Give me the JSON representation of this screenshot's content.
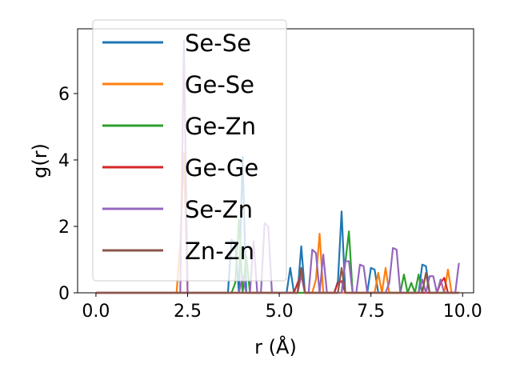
{
  "chart_data": {
    "type": "line",
    "xlabel": "r (Å)",
    "ylabel": "g(r)",
    "xlim": [
      -0.5,
      10.3
    ],
    "ylim": [
      0,
      7.95
    ],
    "xticks": [
      0.0,
      2.5,
      5.0,
      7.5,
      10.0
    ],
    "xtick_labels": [
      "0.0",
      "2.5",
      "5.0",
      "7.5",
      "10.0"
    ],
    "yticks": [
      0,
      2,
      4,
      6
    ],
    "ytick_labels": [
      "0",
      "2",
      "4",
      "6"
    ],
    "grid": false,
    "legend_position": "upper-left",
    "series": [
      {
        "name": "Se-Se",
        "color": "#1f77b4",
        "x": [
          0.0,
          3.6,
          3.7,
          3.8,
          3.9,
          4.0,
          4.1,
          4.2,
          5.2,
          5.3,
          5.4,
          5.5,
          5.6,
          5.7,
          6.5,
          6.6,
          6.7,
          6.8,
          6.9,
          7.4,
          7.5,
          7.6,
          7.7,
          8.8,
          8.9,
          9.0,
          9.1,
          9.9
        ],
        "y": [
          0.0,
          0.0,
          1.6,
          1.5,
          0.0,
          4.1,
          0.0,
          0.0,
          0.0,
          0.75,
          0.0,
          0.0,
          1.4,
          0.0,
          0.0,
          0.35,
          2.45,
          0.0,
          0.0,
          0.0,
          0.75,
          0.7,
          0.0,
          0.0,
          0.85,
          0.8,
          0.0,
          0.0
        ]
      },
      {
        "name": "Ge-Se",
        "color": "#ff7f0e",
        "x": [
          0.0,
          2.2,
          2.3,
          2.4,
          2.5,
          2.6,
          5.9,
          6.0,
          6.1,
          6.2,
          6.3,
          7.6,
          7.7,
          7.8,
          7.9,
          8.0,
          9.5,
          9.6,
          9.7,
          9.9
        ],
        "y": [
          0.0,
          0.0,
          1.5,
          4.2,
          0.0,
          0.0,
          0.0,
          0.4,
          1.78,
          0.0,
          0.0,
          0.0,
          0.6,
          0.0,
          0.75,
          0.0,
          0.0,
          0.7,
          0.0,
          0.0
        ]
      },
      {
        "name": "Ge-Zn",
        "color": "#2ca02c",
        "x": [
          0.0,
          3.7,
          3.8,
          3.9,
          4.0,
          4.1,
          4.2,
          6.7,
          6.8,
          6.9,
          7.0,
          7.1,
          8.3,
          8.4,
          8.5,
          8.6,
          8.7,
          8.8,
          8.9,
          9.0,
          9.9
        ],
        "y": [
          0.0,
          0.0,
          0.3,
          2.2,
          0.0,
          1.1,
          0.0,
          0.0,
          0.9,
          1.85,
          0.0,
          0.0,
          0.0,
          0.55,
          0.0,
          0.3,
          0.0,
          0.55,
          0.0,
          0.0,
          0.0
        ]
      },
      {
        "name": "Ge-Ge",
        "color": "#d62728",
        "x": [
          0.0,
          5.4,
          5.5,
          5.6,
          5.7,
          6.5,
          6.6,
          6.7,
          6.8,
          9.3,
          9.4,
          9.5,
          9.6,
          9.9
        ],
        "y": [
          0.0,
          0.0,
          0.3,
          0.55,
          0.0,
          0.0,
          0.3,
          0.35,
          0.0,
          0.0,
          0.3,
          0.45,
          0.0,
          0.0
        ]
      },
      {
        "name": "Se-Zn",
        "color": "#9467bd",
        "x": [
          0.0,
          2.3,
          2.4,
          2.5,
          3.9,
          4.0,
          4.1,
          4.2,
          4.3,
          4.4,
          4.5,
          4.6,
          4.7,
          4.8,
          4.9,
          5.0,
          5.1,
          5.5,
          5.6,
          5.7,
          5.8,
          5.9,
          6.0,
          6.1,
          6.2,
          6.3,
          6.4,
          6.5,
          6.6,
          6.7,
          6.8,
          6.9,
          7.0,
          7.1,
          7.2,
          7.3,
          7.4,
          7.5,
          7.6,
          7.7,
          7.8,
          7.9,
          8.0,
          8.1,
          8.2,
          8.3,
          8.4,
          8.5,
          8.6,
          8.7,
          8.8,
          8.9,
          9.0,
          9.1,
          9.2,
          9.3,
          9.4,
          9.5,
          9.6,
          9.7,
          9.8,
          9.9
        ],
        "y": [
          0.0,
          0.0,
          7.6,
          0.0,
          0.0,
          0.5,
          0.0,
          0.0,
          1.55,
          0.0,
          0.0,
          2.1,
          2.0,
          0.0,
          0.0,
          0.0,
          0.0,
          0.0,
          0.55,
          0.0,
          0.0,
          1.3,
          1.2,
          0.0,
          1.15,
          0.0,
          0.0,
          0.0,
          0.0,
          0.0,
          0.95,
          0.95,
          0.0,
          0.0,
          0.85,
          0.8,
          0.0,
          0.0,
          0.0,
          0.0,
          0.0,
          0.0,
          0.3,
          1.35,
          1.3,
          0.0,
          0.0,
          0.0,
          0.0,
          0.0,
          0.0,
          0.4,
          0.0,
          0.5,
          0.5,
          0.0,
          0.4,
          0.0,
          0.0,
          0.0,
          0.0,
          0.9
        ]
      },
      {
        "name": "Zn-Zn",
        "color": "#8c564b",
        "x": [
          0.0,
          5.5,
          5.6,
          5.7,
          6.6,
          6.7,
          6.8,
          8.9,
          9.0,
          9.1,
          9.8,
          9.9
        ],
        "y": [
          0.0,
          0.0,
          0.75,
          0.0,
          0.0,
          0.75,
          0.0,
          0.0,
          0.6,
          0.0,
          0.0,
          0.0
        ]
      }
    ]
  }
}
